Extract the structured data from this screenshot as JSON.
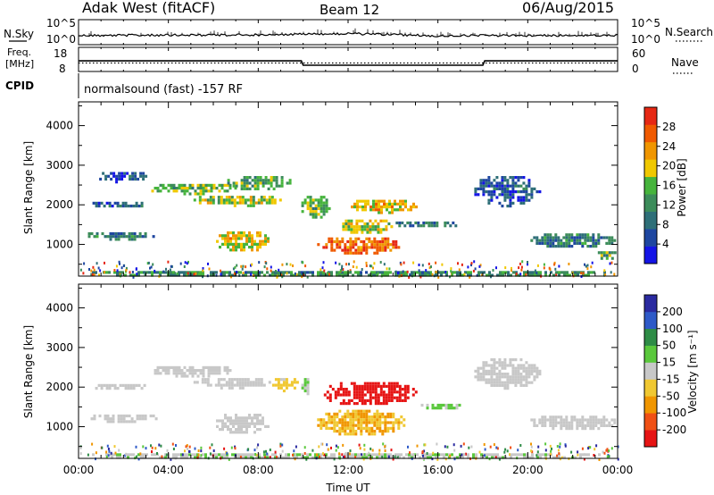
{
  "header": {
    "station": "Adak West (fitACF)",
    "beam": "Beam 12",
    "date": "06/Aug/2015"
  },
  "panels": {
    "nsky": {
      "left_label": "N.Sky",
      "right_label": "N.Search",
      "left_ticks": [
        "10^5",
        "10^0"
      ],
      "right_ticks": [
        "10^5",
        "10^0"
      ]
    },
    "freq": {
      "left_label_1": "Freq.",
      "left_label_2": "[MHz]",
      "right_label": "Nave",
      "left_ticks": [
        "18",
        "8"
      ],
      "right_ticks": [
        "60",
        "0"
      ]
    },
    "cpid": {
      "label": "CPID",
      "text": "normalsound (fast) -157 RF"
    }
  },
  "axes": {
    "x_label": "Time UT",
    "x_ticks": [
      "00:00",
      "04:00",
      "08:00",
      "12:00",
      "16:00",
      "20:00",
      "00:00"
    ],
    "y_label": "Slant Range [km]",
    "y_ticks": [
      "1000",
      "2000",
      "3000",
      "4000"
    ]
  },
  "colorbars": {
    "power": {
      "label": "Power [dB]",
      "ticks": [
        "4",
        "8",
        "12",
        "16",
        "20",
        "24",
        "28"
      ],
      "colors": [
        "#1414e6",
        "#1e46a0",
        "#2e6f78",
        "#3c8c5a",
        "#46b43c",
        "#f0c800",
        "#f09600",
        "#f05a00",
        "#e62814"
      ]
    },
    "velocity": {
      "label": "Velocity [m s⁻¹]",
      "ticks": [
        "200",
        "100",
        "50",
        "15",
        "-15",
        "-50",
        "-100",
        "-200"
      ],
      "colors": [
        "#2a2aa0",
        "#2e5ac8",
        "#2e8c46",
        "#5ac83c",
        "#c8c8c8",
        "#f0c832",
        "#f09600",
        "#f05014",
        "#e61414"
      ]
    }
  },
  "chart_data": [
    {
      "type": "line",
      "title": "N.Sky / N.Search",
      "x": [
        "00:00",
        "04:00",
        "08:00",
        "12:00",
        "16:00",
        "20:00",
        "24:00"
      ],
      "series": [
        {
          "name": "N.Sky",
          "values": [
            2.3,
            2.4,
            2.5,
            2.9,
            2.2,
            2.3,
            2.4
          ]
        },
        {
          "name": "N.Search",
          "values": [
            0,
            0,
            0,
            0,
            0,
            0,
            0
          ]
        }
      ]
    },
    {
      "type": "line",
      "title": "Freq. [MHz] / Nave",
      "x": [
        "00:00",
        "09:55",
        "10:00",
        "18:00",
        "18:05",
        "24:00"
      ],
      "series": [
        {
          "name": "Freq.",
          "values": [
            12.4,
            12.4,
            10.6,
            10.6,
            12.4,
            12.4
          ]
        },
        {
          "name": "Nave",
          "values": [
            21,
            21,
            21,
            21,
            21,
            21
          ]
        }
      ]
    },
    {
      "type": "heatmap",
      "title": "Power [dB]",
      "x": "Time UT (hours)",
      "y": "Slant Range [km]",
      "xlim": [
        0,
        24
      ],
      "ylim": [
        200,
        4600
      ],
      "clim": [
        0,
        32
      ],
      "blobs": [
        {
          "t0": 0.3,
          "t1": 3.5,
          "r0": 1150,
          "r1": 1380,
          "level": 10
        },
        {
          "t0": 0.5,
          "t1": 3.0,
          "r0": 1950,
          "r1": 2150,
          "level": 8
        },
        {
          "t0": 0.8,
          "t1": 3.0,
          "r0": 2600,
          "r1": 2900,
          "level": 6
        },
        {
          "t0": 3.0,
          "t1": 7.0,
          "r0": 2300,
          "r1": 2600,
          "level": 16
        },
        {
          "t0": 5.0,
          "t1": 9.0,
          "r0": 2000,
          "r1": 2300,
          "level": 18
        },
        {
          "t0": 6.5,
          "t1": 9.5,
          "r0": 2400,
          "r1": 2800,
          "level": 14
        },
        {
          "t0": 6.0,
          "t1": 8.5,
          "r0": 850,
          "r1": 1400,
          "level": 20
        },
        {
          "t0": 9.8,
          "t1": 11.2,
          "r0": 1700,
          "r1": 2300,
          "level": 16
        },
        {
          "t0": 10.5,
          "t1": 14.5,
          "r0": 800,
          "r1": 1250,
          "level": 26
        },
        {
          "t0": 11.5,
          "t1": 14.0,
          "r0": 1300,
          "r1": 1700,
          "level": 18
        },
        {
          "t0": 12.0,
          "t1": 15.0,
          "r0": 1800,
          "r1": 2200,
          "level": 20
        },
        {
          "t0": 14.0,
          "t1": 17.0,
          "r0": 1450,
          "r1": 1650,
          "level": 8
        },
        {
          "t0": 17.5,
          "t1": 20.5,
          "r0": 2000,
          "r1": 2800,
          "level": 6
        },
        {
          "t0": 20.0,
          "t1": 23.9,
          "r0": 950,
          "r1": 1350,
          "level": 10
        },
        {
          "t0": 23.0,
          "t1": 23.9,
          "r0": 650,
          "r1": 900,
          "level": 14
        },
        {
          "t0": 0.0,
          "t1": 23.9,
          "r0": 200,
          "r1": 400,
          "level": 12
        }
      ]
    },
    {
      "type": "heatmap",
      "title": "Velocity [m s⁻¹]",
      "x": "Time UT (hours)",
      "y": "Slant Range [km]",
      "xlim": [
        0,
        24
      ],
      "ylim": [
        200,
        4600
      ],
      "clim": [
        -250,
        250
      ],
      "blobs": [
        {
          "t0": 0.3,
          "t1": 3.5,
          "r0": 1150,
          "r1": 1380,
          "level": 0
        },
        {
          "t0": 0.5,
          "t1": 3.0,
          "r0": 1950,
          "r1": 2150,
          "level": 0
        },
        {
          "t0": 3.0,
          "t1": 7.0,
          "r0": 2300,
          "r1": 2600,
          "level": 0
        },
        {
          "t0": 5.0,
          "t1": 8.5,
          "r0": 2000,
          "r1": 2300,
          "level": 0
        },
        {
          "t0": 6.0,
          "t1": 8.5,
          "r0": 850,
          "r1": 1400,
          "level": 0
        },
        {
          "t0": 8.5,
          "t1": 9.8,
          "r0": 1900,
          "r1": 2300,
          "level": -40
        },
        {
          "t0": 9.8,
          "t1": 10.3,
          "r0": 1800,
          "r1": 2300,
          "level": 30
        },
        {
          "t0": 10.5,
          "t1": 14.5,
          "r0": 800,
          "r1": 1500,
          "level": -80
        },
        {
          "t0": 10.8,
          "t1": 15.0,
          "r0": 1550,
          "r1": 2200,
          "level": -220
        },
        {
          "t0": 15.0,
          "t1": 17.0,
          "r0": 1450,
          "r1": 1650,
          "level": 30
        },
        {
          "t0": 17.5,
          "t1": 20.5,
          "r0": 2000,
          "r1": 2800,
          "level": 0
        },
        {
          "t0": 20.0,
          "t1": 23.9,
          "r0": 950,
          "r1": 1350,
          "level": 0
        },
        {
          "t0": 0.0,
          "t1": 23.9,
          "r0": 200,
          "r1": 400,
          "level": 20
        }
      ]
    }
  ]
}
